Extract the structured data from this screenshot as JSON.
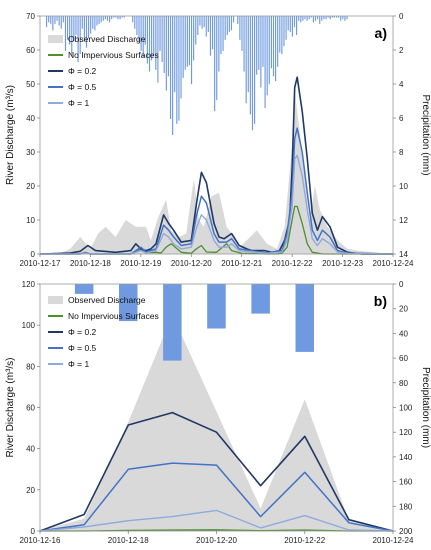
{
  "chart_data": [
    {
      "type": "line",
      "panel_label": "a)",
      "xlabel": "",
      "ylabel": "River Discharge (m³/s)",
      "ylabel_right": "Precipitation (mm)",
      "ylim": [
        0,
        70
      ],
      "ylim_right": [
        0,
        15
      ],
      "right_axis_inverted": true,
      "yticks": [
        "0",
        "10",
        "20",
        "30",
        "40",
        "50",
        "60",
        "70"
      ],
      "yticks_right": [
        "0",
        "2",
        "4",
        "6",
        "8",
        "10",
        "12",
        "14"
      ],
      "x_tick_labels": [
        "2010-12-17",
        "2010-12-18",
        "2010-12-19",
        "2010-12-20",
        "2010-12-21",
        "2010-12-22",
        "2010-12-23",
        "2010-12-24"
      ],
      "x_range_days": [
        0,
        7
      ],
      "legend": {
        "placement": "top-left",
        "entries": [
          "Observed Discharge",
          "No Impervious Surfaces",
          "Φ = 0.2",
          "Φ = 0.5",
          "Φ = 1"
        ]
      },
      "colors": {
        "observed": "#d9d9d9",
        "no_imp": "#4f8f2f",
        "phi02": "#1f3864",
        "phi05": "#4472c4",
        "phi1": "#8faadc",
        "precip": "#6f9ae0"
      },
      "observed": {
        "name": "Observed Discharge",
        "x": [
          0,
          0.4,
          0.6,
          0.8,
          1.0,
          1.15,
          1.3,
          1.5,
          1.7,
          1.9,
          2.1,
          2.2,
          2.35,
          2.5,
          2.6,
          2.75,
          2.9,
          3.05,
          3.15,
          3.25,
          3.4,
          3.55,
          3.7,
          3.85,
          3.95,
          4.1,
          4.3,
          4.5,
          4.7,
          4.85,
          5.0,
          5.05,
          5.15,
          5.25,
          5.35,
          5.45,
          5.55,
          5.7,
          5.9,
          6.1,
          6.3,
          6.6,
          7
        ],
        "y": [
          0,
          0.3,
          1.5,
          5,
          1.5,
          6,
          8,
          5,
          10,
          8,
          8,
          4,
          11,
          16,
          7,
          5,
          6,
          22,
          10,
          8,
          17,
          18,
          8,
          5,
          2,
          4,
          7,
          3,
          1.5,
          8,
          32,
          48,
          36,
          24,
          10,
          20,
          13,
          8,
          4,
          1.5,
          1,
          0.5,
          0
        ]
      },
      "series": [
        {
          "name": "No Impervious Surfaces",
          "x": [
            0,
            0.8,
            0.9,
            1.0,
            1.8,
            1.9,
            2.0,
            2.1,
            2.3,
            2.4,
            2.5,
            2.6,
            2.8,
            3.0,
            3.1,
            3.2,
            3.3,
            3.5,
            3.7,
            3.8,
            4.0,
            4.5,
            4.7,
            4.8,
            4.9,
            5.0,
            5.05,
            5.1,
            5.2,
            5.3,
            5.4,
            5.5,
            5.6,
            5.8,
            7
          ],
          "y": [
            0,
            0,
            0.3,
            0,
            0,
            0.8,
            1.5,
            0.4,
            0.5,
            0.3,
            2,
            3,
            0.5,
            0.2,
            1.5,
            2.5,
            0.6,
            0.5,
            3,
            1,
            0.2,
            0,
            0,
            0.3,
            2,
            10,
            14,
            14,
            9,
            3,
            0.5,
            0.3,
            0,
            0,
            0
          ]
        },
        {
          "name": "Φ = 0.2",
          "x": [
            0,
            0.6,
            0.8,
            0.95,
            1.1,
            1.5,
            1.8,
            1.9,
            2.0,
            2.1,
            2.2,
            2.3,
            2.45,
            2.55,
            2.65,
            2.8,
            3.0,
            3.1,
            3.2,
            3.3,
            3.45,
            3.55,
            3.65,
            3.8,
            3.95,
            4.1,
            4.2,
            4.3,
            4.45,
            4.6,
            4.75,
            4.85,
            4.95,
            5.0,
            5.05,
            5.1,
            5.2,
            5.3,
            5.4,
            5.5,
            5.6,
            5.75,
            5.9,
            6.1,
            6.4,
            7
          ],
          "y": [
            0,
            0.3,
            0.8,
            2.5,
            1,
            0.5,
            1,
            3,
            1.5,
            1,
            1.5,
            3,
            11.5,
            9,
            7,
            3.5,
            4,
            14.5,
            24,
            21,
            9,
            5,
            4.5,
            6,
            2.5,
            1.5,
            1,
            1,
            1,
            0.5,
            1,
            4,
            10,
            25,
            49,
            52,
            42,
            28,
            12,
            7,
            11,
            8,
            2,
            0.5,
            0,
            0
          ]
        },
        {
          "name": "Φ = 0.5",
          "x": [
            0,
            0.8,
            0.9,
            1.0,
            1.8,
            1.9,
            2.0,
            2.1,
            2.3,
            2.45,
            2.55,
            2.65,
            2.8,
            3.0,
            3.1,
            3.2,
            3.3,
            3.45,
            3.55,
            3.7,
            3.8,
            3.95,
            4.5,
            4.8,
            4.9,
            5.0,
            5.05,
            5.1,
            5.2,
            5.3,
            5.4,
            5.5,
            5.6,
            5.75,
            5.9,
            6.1,
            7
          ],
          "y": [
            0,
            0,
            0.5,
            0,
            0,
            1,
            2,
            0.6,
            1.5,
            8.5,
            7,
            5,
            2.5,
            3,
            11,
            17,
            15,
            6,
            3.5,
            3.5,
            4.5,
            1.5,
            0.3,
            1,
            6,
            18,
            34,
            37,
            30,
            18,
            7,
            4,
            7,
            5,
            1,
            0.3,
            0
          ]
        },
        {
          "name": "Φ = 1",
          "x": [
            0,
            0.8,
            0.9,
            1.0,
            1.8,
            1.9,
            2.0,
            2.1,
            2.3,
            2.45,
            2.55,
            2.65,
            2.8,
            3.0,
            3.1,
            3.2,
            3.3,
            3.45,
            3.55,
            3.7,
            3.8,
            3.95,
            4.5,
            4.8,
            4.9,
            5.0,
            5.05,
            5.1,
            5.2,
            5.3,
            5.4,
            5.5,
            5.6,
            5.75,
            5.9,
            6.1,
            7
          ],
          "y": [
            0,
            0,
            0.3,
            0,
            0,
            0.5,
            1,
            0.3,
            1,
            6,
            5,
            3,
            1.5,
            2,
            7.5,
            11.5,
            10,
            4,
            2,
            2,
            3,
            1,
            0.2,
            0.6,
            4,
            14,
            28,
            29,
            23,
            13,
            4.5,
            2.5,
            4.5,
            3,
            0.6,
            0.2,
            0
          ]
        }
      ],
      "precipitation": {
        "name": "Precipitation",
        "x_start": 0.13,
        "step": 0.0416667,
        "values": [
          0.7,
          0.4,
          0.5,
          0.9,
          0.5,
          0.3,
          0.6,
          0.8,
          0.4,
          2.2,
          1.5,
          1.8,
          2.5,
          1.6,
          1.2,
          2.9,
          2.4,
          0.8,
          1.6,
          2.0,
          1.4,
          1.1,
          0.8,
          0.9,
          0.6,
          0.5,
          0.4,
          0.3,
          0.2,
          0.3,
          0.4,
          0.2,
          0.1,
          0.1,
          0.2,
          0.2,
          0.1,
          0.1,
          0,
          0,
          0,
          0.4,
          0.8,
          1.2,
          1.6,
          2.2,
          2.6,
          1.8,
          3.0,
          3.5,
          2.8,
          2.5,
          3.4,
          4.2,
          2.2,
          2.9,
          3.6,
          4.7,
          3.8,
          6.5,
          7.5,
          4.8,
          6.8,
          6.6,
          5.2,
          3.9,
          3.4,
          3.2,
          3.1,
          4.3,
          2.8,
          1.8,
          1.2,
          0.6,
          0.8,
          0.7,
          1.3,
          1.0,
          2.5,
          2.1,
          6.0,
          5.3,
          3.5,
          2.4,
          2.2,
          1.5,
          1.2,
          1.0,
          0.9,
          0.4,
          0,
          0.5,
          1.5,
          2.2,
          3.5,
          5.5,
          4.8,
          6.2,
          7.2,
          6.8,
          3.7,
          3.4,
          4.5,
          3.2,
          5.8,
          5.0,
          4.3,
          3.3,
          3.8,
          4.1,
          3.2,
          2.3,
          2.4,
          1.9,
          1.5,
          0.9,
          1.0,
          1.3,
          0.7,
          1.2,
          0.3,
          0.4,
          0.3,
          0.2,
          0.3,
          0.2,
          0.1,
          0.4,
          0.3,
          0.2,
          0.5,
          0.3,
          0.2,
          0.2,
          0.1,
          0.2,
          0.1,
          0.1,
          0.1,
          0.1,
          0.3,
          0.2,
          0.3,
          0.2
        ]
      }
    },
    {
      "type": "line",
      "panel_label": "b)",
      "xlabel": "",
      "ylabel": "River Discharge (m³/s)",
      "ylabel_right": "Precipitation (mm)",
      "ylim": [
        0,
        120
      ],
      "ylim_right": [
        0,
        200
      ],
      "right_axis_inverted": true,
      "yticks": [
        "0",
        "20",
        "40",
        "60",
        "80",
        "100",
        "120"
      ],
      "yticks_right": [
        "0",
        "20",
        "40",
        "60",
        "80",
        "100",
        "120",
        "140",
        "160",
        "180",
        "200"
      ],
      "x_tick_labels": [
        "2010-12-16",
        "2010-12-18",
        "2010-12-20",
        "2010-12-22",
        "2010-12-24"
      ],
      "x_range_days": [
        0,
        8
      ],
      "legend": {
        "placement": "top-left",
        "entries": [
          "Observed Discharge",
          "No Impervious Surfaces",
          "Φ = 0.2",
          "Φ = 0.5",
          "Φ = 1"
        ]
      },
      "observed": {
        "name": "Observed Discharge",
        "x": [
          0,
          1,
          2,
          3,
          4,
          5,
          6,
          7,
          8
        ],
        "y": [
          0,
          6,
          53,
          105,
          58,
          11,
          64,
          5,
          0
        ]
      },
      "series": [
        {
          "name": "No Impervious Surfaces",
          "x": [
            0,
            1,
            2,
            3,
            4,
            5,
            6,
            7,
            8
          ],
          "y": [
            0,
            0,
            0.3,
            0.5,
            0.6,
            0.2,
            0.5,
            0,
            0
          ]
        },
        {
          "name": "Φ = 0.2",
          "x": [
            0,
            1,
            2,
            3,
            4,
            5,
            6,
            7,
            8
          ],
          "y": [
            0,
            8,
            51.5,
            57.5,
            48,
            22,
            46,
            5.5,
            0
          ]
        },
        {
          "name": "Φ = 0.5",
          "x": [
            0,
            1,
            2,
            3,
            4,
            5,
            6,
            7,
            8
          ],
          "y": [
            0,
            3,
            30,
            33,
            32,
            7,
            28.5,
            4,
            0
          ]
        },
        {
          "name": "Φ = 1",
          "x": [
            0,
            1,
            2,
            3,
            4,
            5,
            6,
            7,
            8
          ],
          "y": [
            0,
            2,
            5,
            7,
            10,
            1.5,
            7.5,
            0.5,
            0
          ]
        }
      ],
      "precipitation": {
        "name": "Precipitation",
        "bars": [
          {
            "x": 1,
            "value": 8
          },
          {
            "x": 2,
            "value": 30
          },
          {
            "x": 3,
            "value": 62
          },
          {
            "x": 4,
            "value": 36
          },
          {
            "x": 5,
            "value": 24
          },
          {
            "x": 6,
            "value": 55
          }
        ]
      }
    }
  ]
}
